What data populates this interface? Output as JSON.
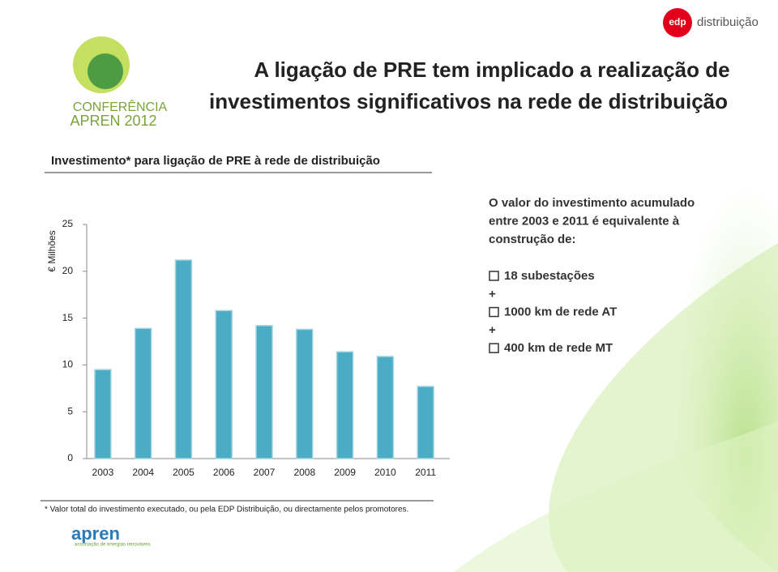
{
  "header": {
    "title_lines": [
      "A ligação de PRE tem implicado a realização de",
      "investimentos significativos na rede de distribuição"
    ],
    "logo_edp": "edp",
    "logo_edp_sub": "distribuição",
    "conference_lines": [
      "CONFERÊNCIA",
      "APREN 2012"
    ]
  },
  "chart_data": {
    "type": "bar",
    "title": "Investimento* para ligação de PRE à rede de distribuição",
    "y_label": "€ Milhões",
    "categories": [
      "2003",
      "2004",
      "2005",
      "2006",
      "2007",
      "2008",
      "2009",
      "2010",
      "2011"
    ],
    "values": [
      9.5,
      13.9,
      21.2,
      15.8,
      14.2,
      13.8,
      11.4,
      10.9,
      7.7
    ],
    "color": "#4bacc6",
    "ylim": [
      0,
      25
    ],
    "yticks": [
      0,
      5,
      10,
      15,
      20,
      25
    ],
    "grid": false
  },
  "side_text": {
    "intro_lines": [
      "O valor do investimento acumulado",
      "entre 2003 e 2011 é equivalente à",
      "construção de:"
    ],
    "list": [
      {
        "text": "18 subestações",
        "bullet": true
      },
      {
        "text": "+",
        "bullet": false
      },
      {
        "text": "1000 km de rede AT",
        "bullet": true
      },
      {
        "text": "+",
        "bullet": false
      },
      {
        "text": "400 km de rede MT",
        "bullet": true
      }
    ]
  },
  "footnote": "* Valor total do investimento executado, ou pela EDP Distribuição, ou directamente pelos promotores.",
  "footer_logo": {
    "name": "apren",
    "tagline": "associação de energias renováveis"
  }
}
